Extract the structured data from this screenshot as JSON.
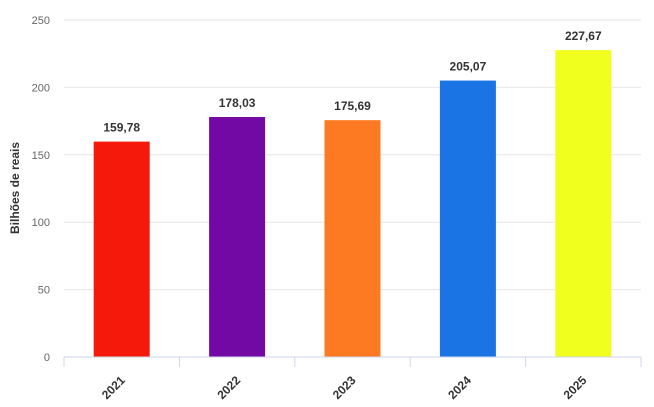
{
  "chart_data": {
    "type": "bar",
    "categories": [
      "2021",
      "2022",
      "2023",
      "2024",
      "2025"
    ],
    "values": [
      159.78,
      178.03,
      175.69,
      205.07,
      227.67
    ],
    "data_labels": [
      "159,78",
      "178,03",
      "175,69",
      "205,07",
      "227,67"
    ],
    "colors": [
      "#f4190b",
      "#7209a4",
      "#fd7a23",
      "#1b74e4",
      "#f0ff1e"
    ],
    "title": "",
    "xlabel": "",
    "ylabel": "Bilhões de reais",
    "ylim": [
      0,
      250
    ],
    "yticks": [
      0,
      50,
      100,
      150,
      200,
      250
    ],
    "grid": true,
    "legend": "none"
  }
}
